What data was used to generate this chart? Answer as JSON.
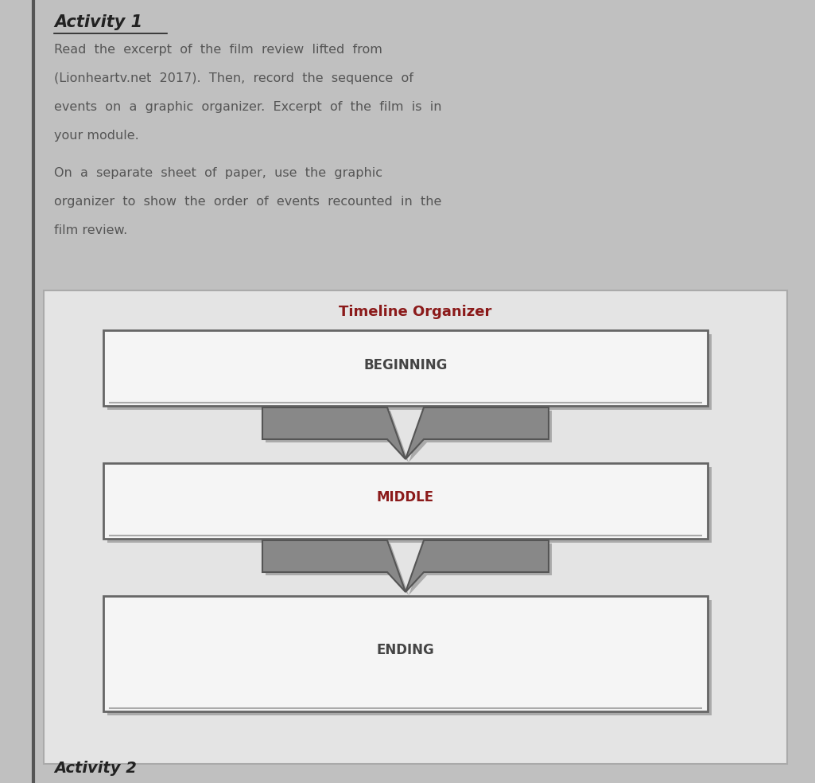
{
  "title": "Activity 1",
  "organizer_title": "Timeline Organizer",
  "sections": [
    "BEGINNING",
    "MIDDLE",
    "ENDING"
  ],
  "section_label_colors": [
    "#444444",
    "#8B1a1a",
    "#444444"
  ],
  "background_color": "#c8c8c8",
  "box_bg_color": "#f5f5f5",
  "outer_box_bg": "#e0e0e0",
  "box_border_color": "#666666",
  "arrow_fill": "#888888",
  "arrow_edge": "#555555",
  "title_color": "#8B1a1a",
  "text_color": "#555555",
  "activity_title_color": "#222222",
  "page_bg": "#c0c0c0",
  "left_line_color": "#555555"
}
